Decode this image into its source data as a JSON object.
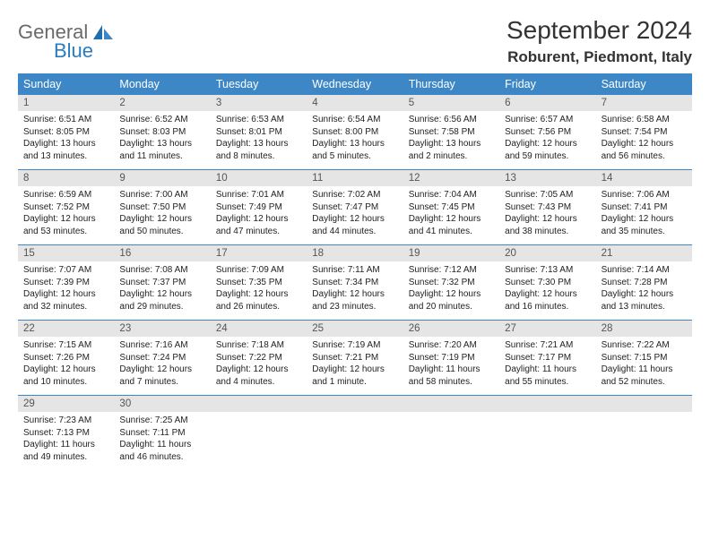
{
  "logo": {
    "grey": "General",
    "blue": "Blue"
  },
  "title": "September 2024",
  "subtitle": "Roburent, Piedmont, Italy",
  "colors": {
    "header_bar": "#3d87c7",
    "daynum_bg": "#e5e5e5",
    "text": "#222222",
    "title_text": "#333333"
  },
  "dow": [
    "Sunday",
    "Monday",
    "Tuesday",
    "Wednesday",
    "Thursday",
    "Friday",
    "Saturday"
  ],
  "days": [
    {
      "n": "1",
      "sr": "6:51 AM",
      "ss": "8:05 PM",
      "dl": "13 hours and 13 minutes."
    },
    {
      "n": "2",
      "sr": "6:52 AM",
      "ss": "8:03 PM",
      "dl": "13 hours and 11 minutes."
    },
    {
      "n": "3",
      "sr": "6:53 AM",
      "ss": "8:01 PM",
      "dl": "13 hours and 8 minutes."
    },
    {
      "n": "4",
      "sr": "6:54 AM",
      "ss": "8:00 PM",
      "dl": "13 hours and 5 minutes."
    },
    {
      "n": "5",
      "sr": "6:56 AM",
      "ss": "7:58 PM",
      "dl": "13 hours and 2 minutes."
    },
    {
      "n": "6",
      "sr": "6:57 AM",
      "ss": "7:56 PM",
      "dl": "12 hours and 59 minutes."
    },
    {
      "n": "7",
      "sr": "6:58 AM",
      "ss": "7:54 PM",
      "dl": "12 hours and 56 minutes."
    },
    {
      "n": "8",
      "sr": "6:59 AM",
      "ss": "7:52 PM",
      "dl": "12 hours and 53 minutes."
    },
    {
      "n": "9",
      "sr": "7:00 AM",
      "ss": "7:50 PM",
      "dl": "12 hours and 50 minutes."
    },
    {
      "n": "10",
      "sr": "7:01 AM",
      "ss": "7:49 PM",
      "dl": "12 hours and 47 minutes."
    },
    {
      "n": "11",
      "sr": "7:02 AM",
      "ss": "7:47 PM",
      "dl": "12 hours and 44 minutes."
    },
    {
      "n": "12",
      "sr": "7:04 AM",
      "ss": "7:45 PM",
      "dl": "12 hours and 41 minutes."
    },
    {
      "n": "13",
      "sr": "7:05 AM",
      "ss": "7:43 PM",
      "dl": "12 hours and 38 minutes."
    },
    {
      "n": "14",
      "sr": "7:06 AM",
      "ss": "7:41 PM",
      "dl": "12 hours and 35 minutes."
    },
    {
      "n": "15",
      "sr": "7:07 AM",
      "ss": "7:39 PM",
      "dl": "12 hours and 32 minutes."
    },
    {
      "n": "16",
      "sr": "7:08 AM",
      "ss": "7:37 PM",
      "dl": "12 hours and 29 minutes."
    },
    {
      "n": "17",
      "sr": "7:09 AM",
      "ss": "7:35 PM",
      "dl": "12 hours and 26 minutes."
    },
    {
      "n": "18",
      "sr": "7:11 AM",
      "ss": "7:34 PM",
      "dl": "12 hours and 23 minutes."
    },
    {
      "n": "19",
      "sr": "7:12 AM",
      "ss": "7:32 PM",
      "dl": "12 hours and 20 minutes."
    },
    {
      "n": "20",
      "sr": "7:13 AM",
      "ss": "7:30 PM",
      "dl": "12 hours and 16 minutes."
    },
    {
      "n": "21",
      "sr": "7:14 AM",
      "ss": "7:28 PM",
      "dl": "12 hours and 13 minutes."
    },
    {
      "n": "22",
      "sr": "7:15 AM",
      "ss": "7:26 PM",
      "dl": "12 hours and 10 minutes."
    },
    {
      "n": "23",
      "sr": "7:16 AM",
      "ss": "7:24 PM",
      "dl": "12 hours and 7 minutes."
    },
    {
      "n": "24",
      "sr": "7:18 AM",
      "ss": "7:22 PM",
      "dl": "12 hours and 4 minutes."
    },
    {
      "n": "25",
      "sr": "7:19 AM",
      "ss": "7:21 PM",
      "dl": "12 hours and 1 minute."
    },
    {
      "n": "26",
      "sr": "7:20 AM",
      "ss": "7:19 PM",
      "dl": "11 hours and 58 minutes."
    },
    {
      "n": "27",
      "sr": "7:21 AM",
      "ss": "7:17 PM",
      "dl": "11 hours and 55 minutes."
    },
    {
      "n": "28",
      "sr": "7:22 AM",
      "ss": "7:15 PM",
      "dl": "11 hours and 52 minutes."
    },
    {
      "n": "29",
      "sr": "7:23 AM",
      "ss": "7:13 PM",
      "dl": "11 hours and 49 minutes."
    },
    {
      "n": "30",
      "sr": "7:25 AM",
      "ss": "7:11 PM",
      "dl": "11 hours and 46 minutes."
    }
  ],
  "labels": {
    "sunrise": "Sunrise:",
    "sunset": "Sunset:",
    "daylight": "Daylight:"
  },
  "layout": {
    "start_offset": 0,
    "weeks": 5
  }
}
